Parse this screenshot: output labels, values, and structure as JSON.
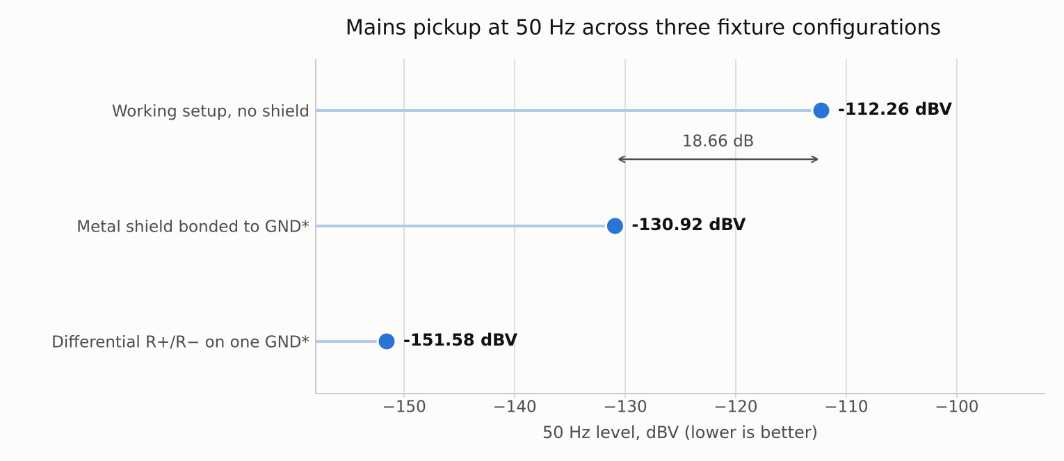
{
  "chart_data": {
    "type": "lollipop",
    "orientation": "horizontal",
    "title": "Mains pickup at 50 Hz across three fixture configurations",
    "x_label": "50 Hz level, dBV (lower is better)",
    "categories": [
      "Working setup, no shield",
      "Metal shield bonded to GND*",
      "Differential R+/R− on one GND*"
    ],
    "values": [
      -112.26,
      -130.92,
      -151.58
    ],
    "value_labels": [
      "-112.26 dBV",
      "-130.92 dBV",
      "-151.58 dBV"
    ],
    "color": "#2a74d5",
    "stem_color": "#aecbeb",
    "xlim": [
      -158,
      -92
    ],
    "xticks": [
      {
        "value": -150,
        "label": "−150"
      },
      {
        "value": -140,
        "label": "−140"
      },
      {
        "value": -130,
        "label": "−130"
      },
      {
        "value": -120,
        "label": "−120"
      },
      {
        "value": -110,
        "label": "−110"
      },
      {
        "value": -100,
        "label": "−100"
      }
    ],
    "grid": true,
    "annotation": "18.66 dB"
  }
}
